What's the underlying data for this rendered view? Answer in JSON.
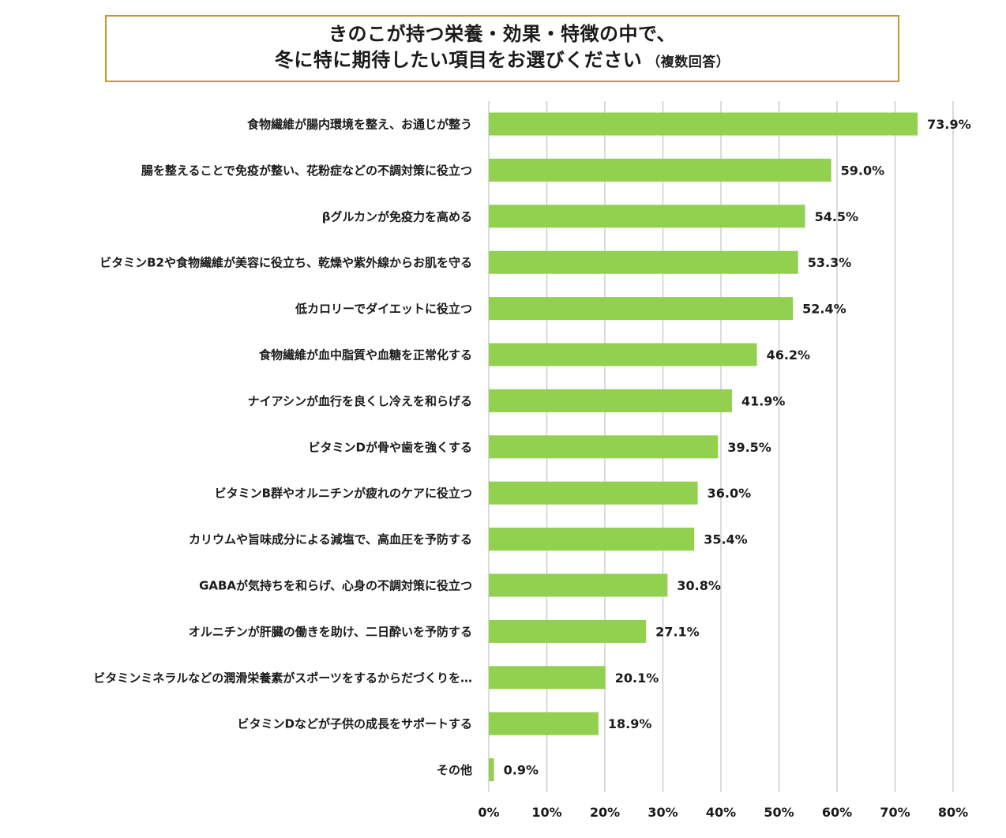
{
  "header": {
    "title_line1": "きのこが持つ栄養・効果・特徴の中で、",
    "title_line2": "冬に特に期待したい項目をお選びください",
    "title_note": "（複数回答）",
    "border_color": "#c39a2a"
  },
  "chart_data": {
    "type": "bar",
    "orientation": "horizontal",
    "categories": [
      "食物繊維が腸内環境を整え、お通じが整う",
      "腸を整えることで免疫が整い、花粉症などの不調対策に役立つ",
      "βグルカンが免疫力を高める",
      "ビタミンB2や食物繊維が美容に役立ち、乾燥や紫外線からお肌を守る",
      "低カロリーでダイエットに役立つ",
      "食物繊維が血中脂質や血糖を正常化する",
      "ナイアシンが血行を良くし冷えを和らげる",
      "ビタミンDが骨や歯を強くする",
      "ビタミンB群やオルニチンが疲れのケアに役立つ",
      "カリウムや旨味成分による減塩で、高血圧を予防する",
      "GABAが気持ちを和らげ、心身の不調対策に役立つ",
      "オルニチンが肝臓の働きを助け、二日酔いを予防する",
      "ビタミンミネラルなどの潤滑栄養素がスポーツをするからだづくりを…",
      "ビタミンDなどが子供の成長をサポートする",
      "その他"
    ],
    "values": [
      73.9,
      59.0,
      54.5,
      53.3,
      52.4,
      46.2,
      41.9,
      39.5,
      36.0,
      35.4,
      30.8,
      27.1,
      20.1,
      18.9,
      0.9
    ],
    "value_labels": [
      "73.9%",
      "59.0%",
      "54.5%",
      "53.3%",
      "52.4%",
      "46.2%",
      "41.9%",
      "39.5%",
      "36.0%",
      "35.4%",
      "30.8%",
      "27.1%",
      "20.1%",
      "18.9%",
      "0.9%"
    ],
    "xlim": [
      0,
      80
    ],
    "xticks": [
      0,
      10,
      20,
      30,
      40,
      50,
      60,
      70,
      80
    ],
    "xtick_labels": [
      "0%",
      "10%",
      "20%",
      "30%",
      "40%",
      "50%",
      "60%",
      "70%",
      "80%"
    ],
    "grid": "vertical",
    "legend": "none",
    "bar_color": "#92d050",
    "grid_color": "#c8c8c8"
  }
}
